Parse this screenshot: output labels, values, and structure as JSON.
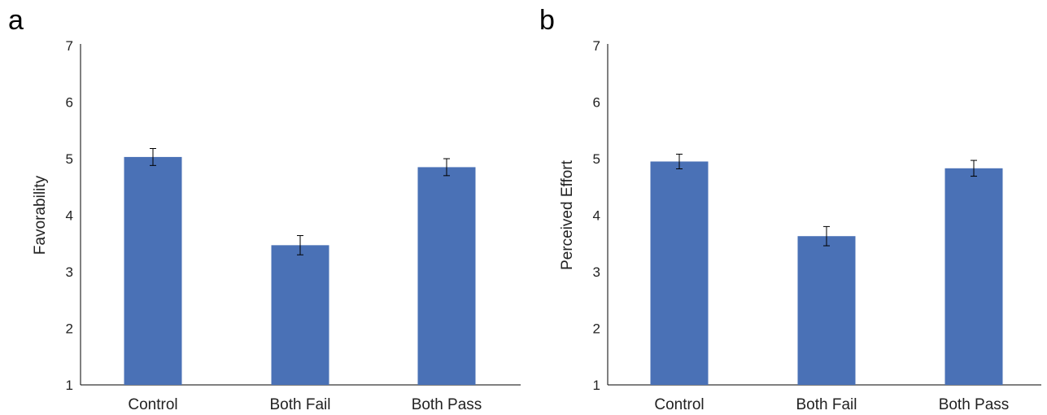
{
  "chart_data": [
    {
      "panel_label": "a",
      "type": "bar",
      "categories": [
        "Control",
        "Both Fail",
        "Both Pass"
      ],
      "values": [
        5.03,
        3.47,
        4.85
      ],
      "error": [
        0.15,
        0.17,
        0.15
      ],
      "ylabel": "Favorability",
      "xlabel": "",
      "ylim": [
        1,
        7
      ],
      "yticks": [
        1,
        2,
        3,
        4,
        5,
        6,
        7
      ],
      "grid": false,
      "bar_color": "#4a71b6"
    },
    {
      "panel_label": "b",
      "type": "bar",
      "categories": [
        "Control",
        "Both Fail",
        "Both Pass"
      ],
      "values": [
        4.95,
        3.63,
        4.83
      ],
      "error": [
        0.13,
        0.17,
        0.14
      ],
      "ylabel": "Perceived Effort",
      "xlabel": "",
      "ylim": [
        1,
        7
      ],
      "yticks": [
        1,
        2,
        3,
        4,
        5,
        6,
        7
      ],
      "grid": false,
      "bar_color": "#4a71b6"
    }
  ]
}
